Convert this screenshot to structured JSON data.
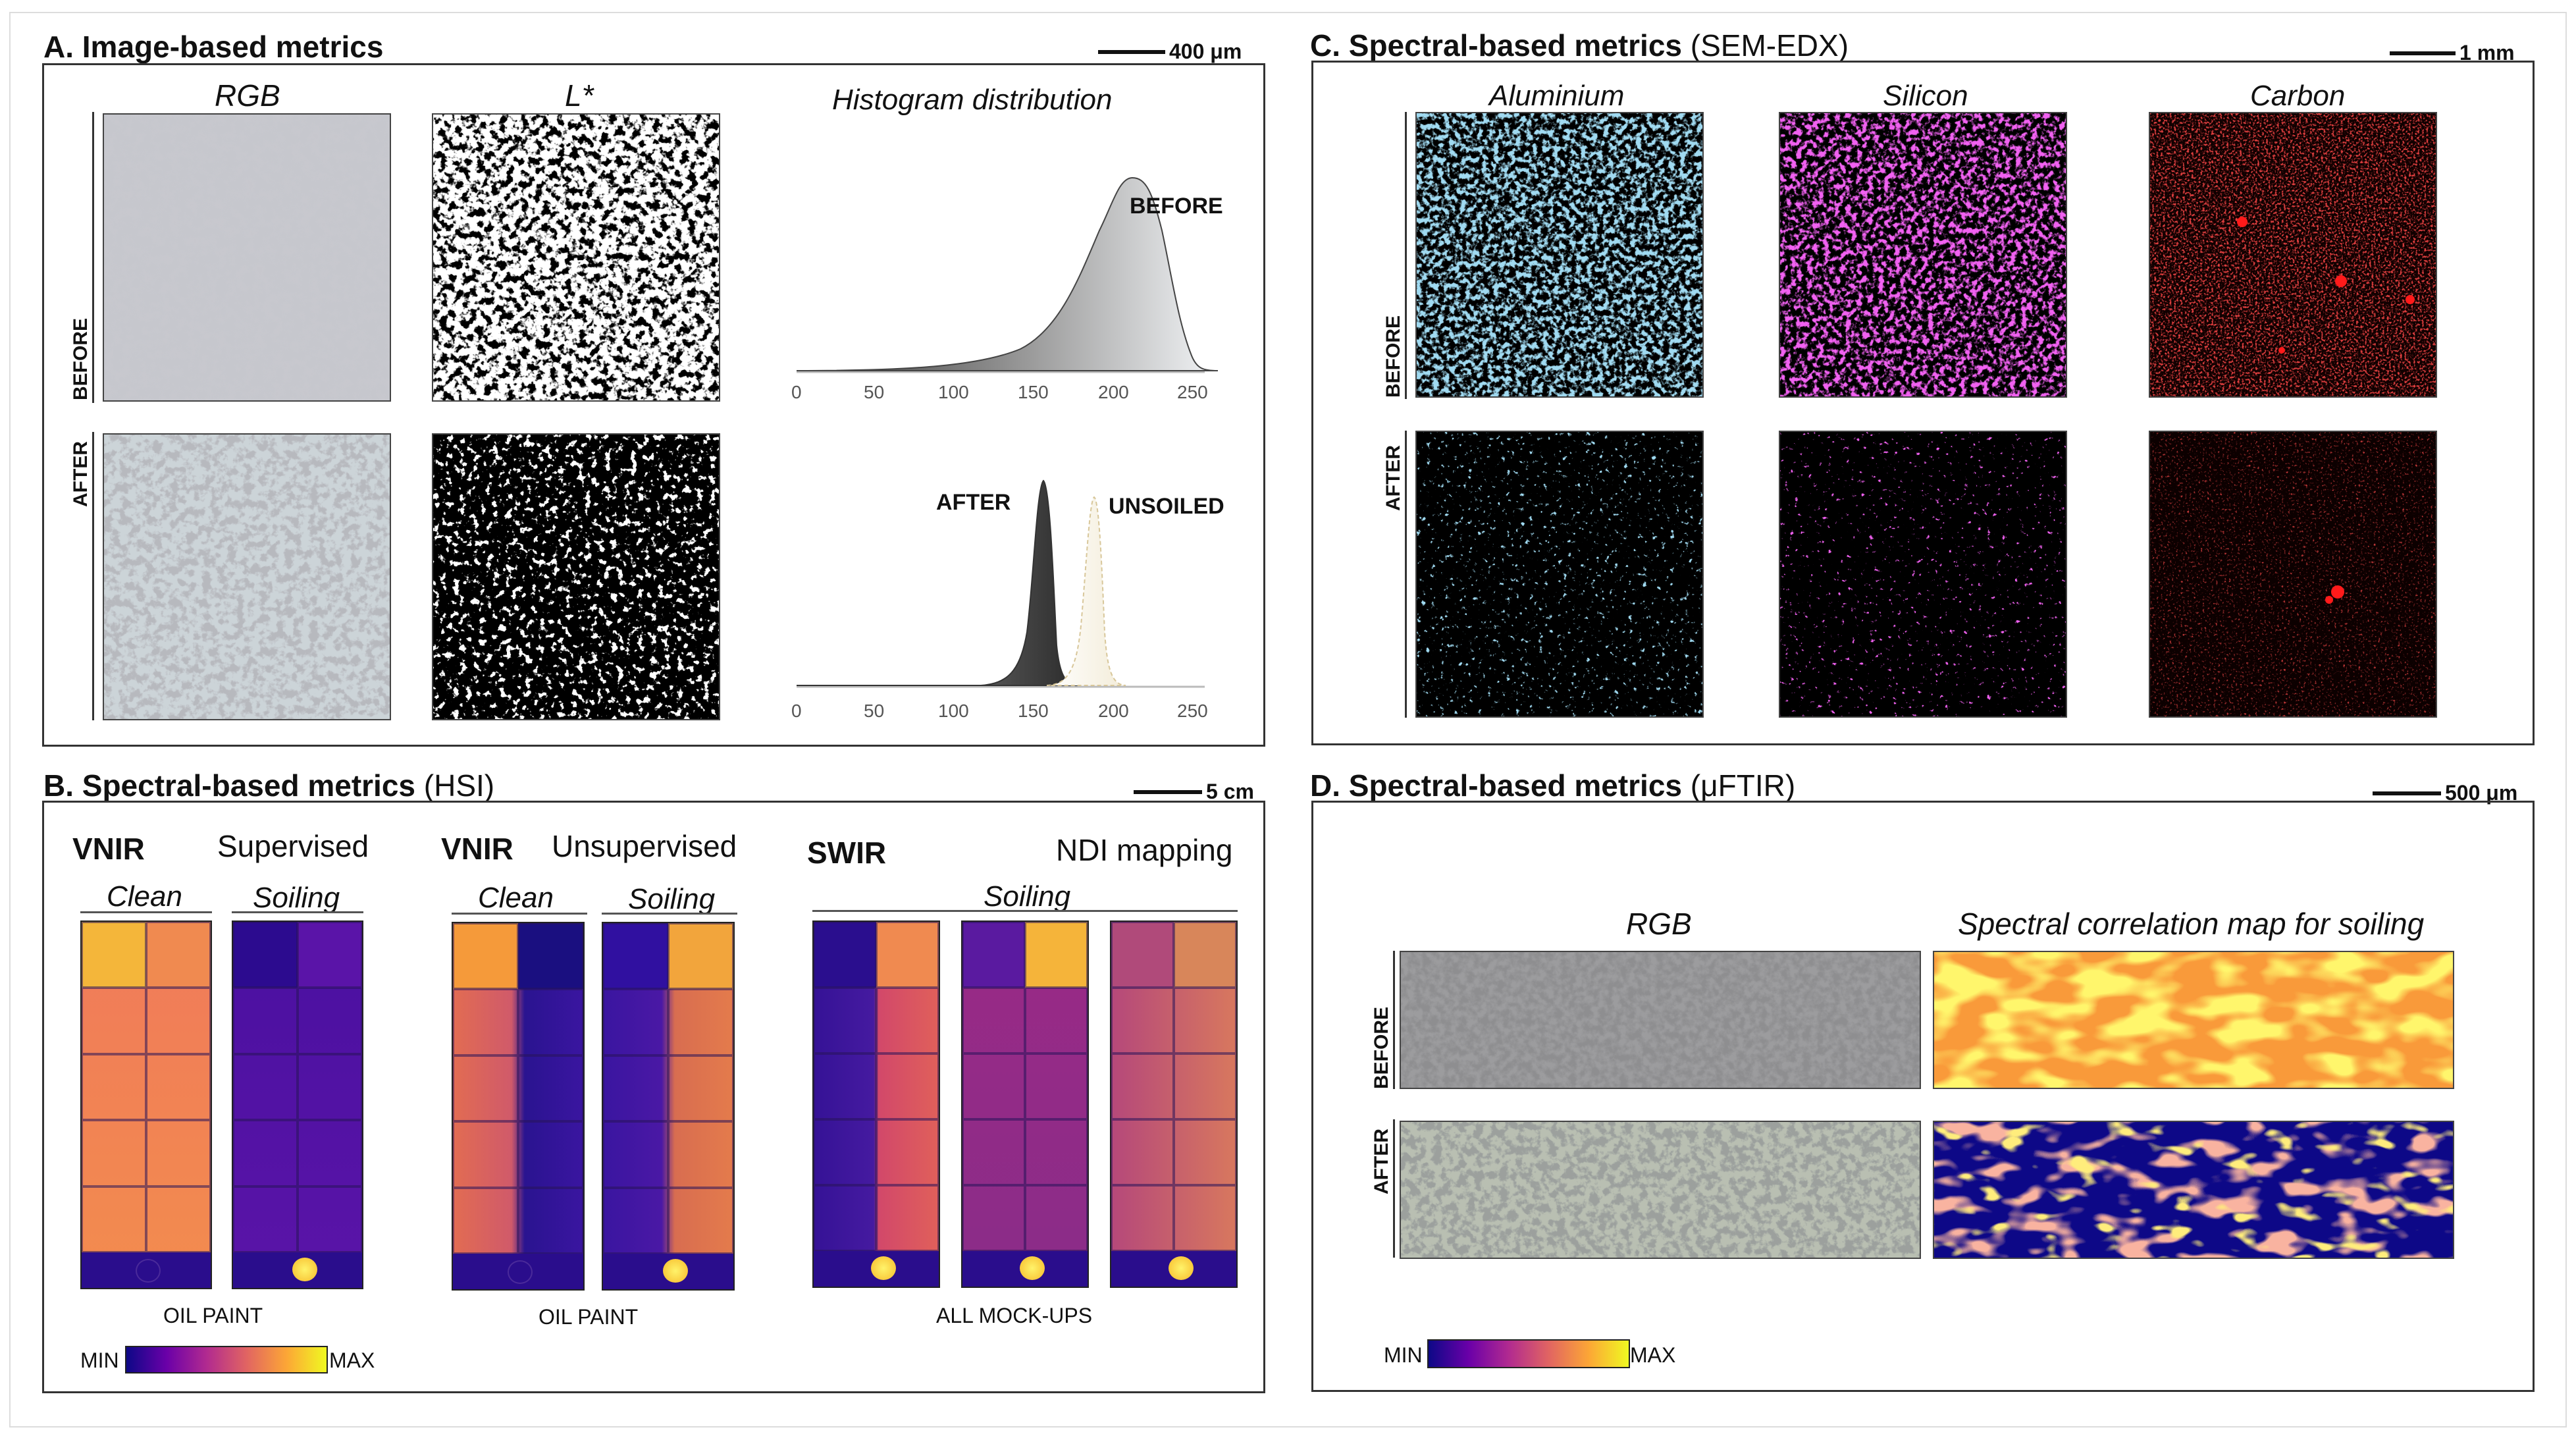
{
  "panelA": {
    "title_bold": "A. Image-based metrics",
    "scale": "400 μm",
    "col_rgb": "RGB",
    "col_l": "L*",
    "col_hist": "Histogram distribution",
    "row_before": "BEFORE",
    "row_after": "AFTER",
    "hist_before_label": "BEFORE",
    "hist_after_label": "AFTER",
    "hist_unsoiled_label": "UNSOILED",
    "ticks": [
      "0",
      "50",
      "100",
      "150",
      "200",
      "250"
    ]
  },
  "panelB": {
    "title_bold": "B. Spectral-based metrics",
    "title_rest": "(HSI)",
    "scale": "5 cm",
    "g1_sensor": "VNIR",
    "g1_method": "Supervised",
    "g2_sensor": "VNIR",
    "g2_method": "Unsupervised",
    "g3_sensor": "SWIR",
    "g3_method": "NDI mapping",
    "clean": "Clean",
    "soiling": "Soiling",
    "g1_caption": "OIL PAINT",
    "g2_caption": "OIL PAINT",
    "g3_caption": "ALL MOCK-UPS",
    "cb_min": "MIN",
    "cb_max": "MAX"
  },
  "panelC": {
    "title_bold": "C. Spectral-based metrics",
    "title_rest": "(SEM-EDX)",
    "scale": "1 mm",
    "col1": "Aluminium",
    "col2": "Silicon",
    "col3": "Carbon",
    "row_before": "BEFORE",
    "row_after": "AFTER",
    "colors": {
      "aluminium": "#5ab4e0",
      "silicon": "#e020e0",
      "carbon": "#e01818"
    }
  },
  "panelD": {
    "title_bold": "D. Spectral-based metrics",
    "title_rest": "(μFTIR)",
    "scale": "500 μm",
    "col_rgb": "RGB",
    "col_map": "Spectral correlation map for soiling",
    "row_before": "BEFORE",
    "row_after": "AFTER",
    "cb_min": "MIN",
    "cb_max": "MAX"
  }
}
